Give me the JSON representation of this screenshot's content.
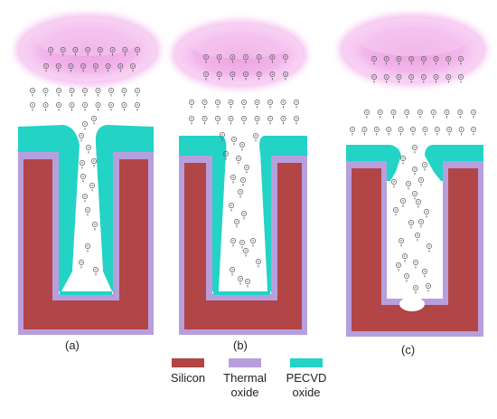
{
  "panels": [
    {
      "label": "(a)"
    },
    {
      "label": "(b)"
    },
    {
      "label": "(c)"
    }
  ],
  "legend": [
    {
      "label": "Silicon",
      "color": "#b24545"
    },
    {
      "label": "Thermal\noxide",
      "color": "#b79fde"
    },
    {
      "label": "PECVD\noxide",
      "color": "#22d3c6"
    }
  ],
  "colors": {
    "silicon": "#b24545",
    "thermal_oxide": "#b79fde",
    "pecvd_oxide": "#22d3c6",
    "plasma": "#f0a8ea",
    "ion": "#555555"
  }
}
